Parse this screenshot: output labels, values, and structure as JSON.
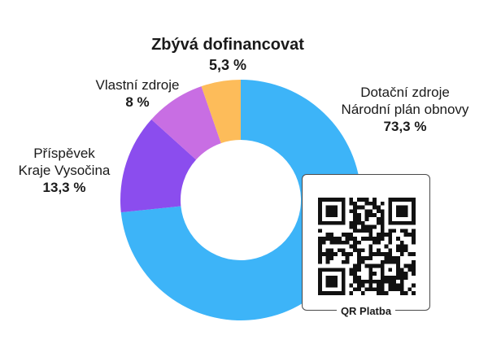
{
  "chart_data": {
    "type": "pie",
    "donut": true,
    "slices": [
      {
        "label_lines": [
          "Dotační zdroje",
          "Národní plán obnovy"
        ],
        "pct_label": "73,3 %",
        "value": 73.3,
        "color": "#3db4f8"
      },
      {
        "label_lines": [
          "Příspěvek",
          "Kraje Vysočina"
        ],
        "pct_label": "13,3 %",
        "value": 13.3,
        "color": "#8b4dee"
      },
      {
        "label_lines": [
          "Vlastní zdroje"
        ],
        "pct_label": "8 %",
        "value": 8,
        "color": "#c86ee3"
      },
      {
        "label_lines": [
          "Zbývá dofinancovat"
        ],
        "pct_label": "5,3 %",
        "value": 5.3,
        "color": "#fdbc5a"
      }
    ]
  },
  "qr": {
    "caption": "QR Platba"
  }
}
